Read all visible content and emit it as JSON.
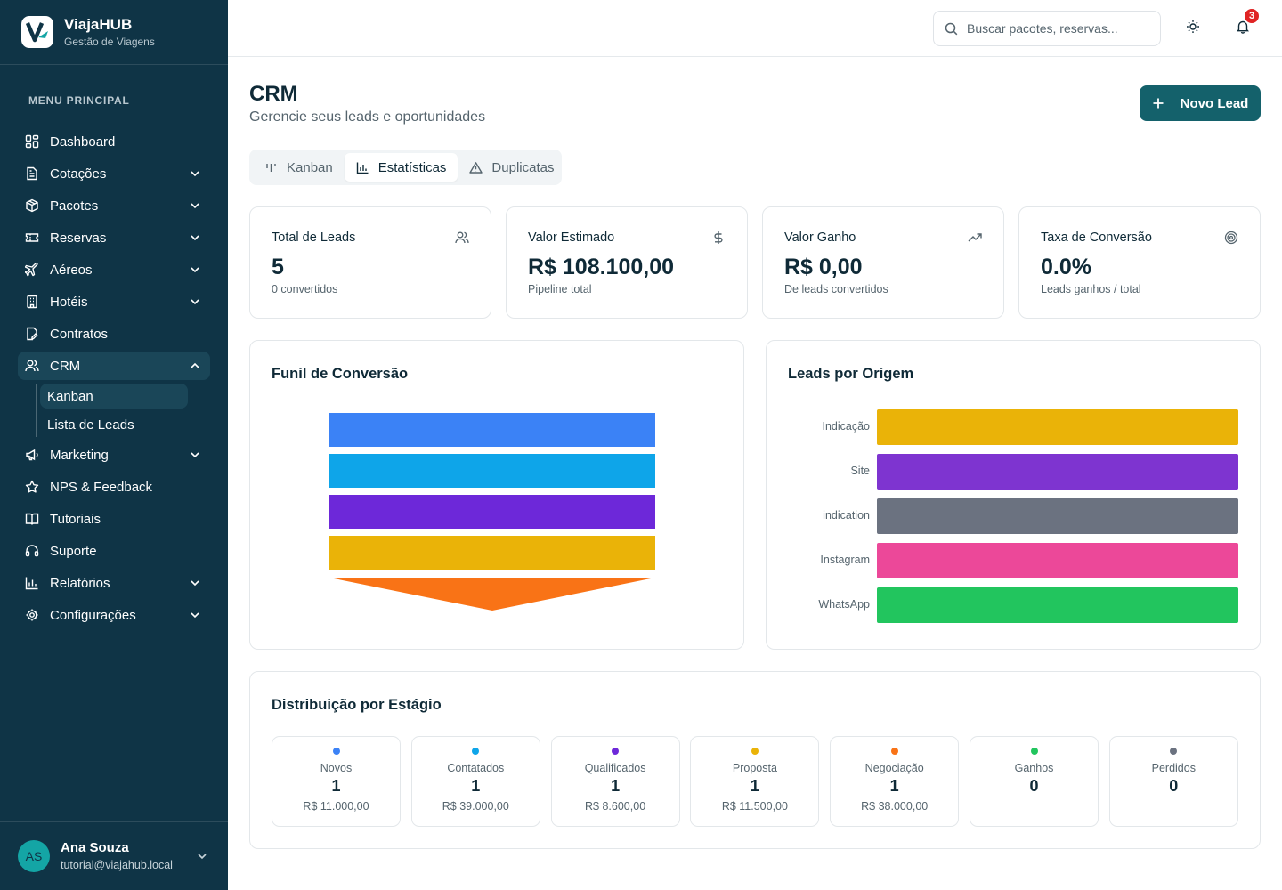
{
  "brand": {
    "name": "ViajaHUB",
    "subtitle": "Gestão de Viagens",
    "logo_letter": "V"
  },
  "sidebar": {
    "section_title": "MENU PRINCIPAL",
    "items": [
      {
        "label": "Dashboard",
        "icon": "grid-icon",
        "expandable": false
      },
      {
        "label": "Cotações",
        "icon": "document-icon",
        "expandable": true
      },
      {
        "label": "Pacotes",
        "icon": "package-icon",
        "expandable": true
      },
      {
        "label": "Reservas",
        "icon": "ticket-icon",
        "expandable": true
      },
      {
        "label": "Aéreos",
        "icon": "plane-icon",
        "expandable": true
      },
      {
        "label": "Hotéis",
        "icon": "hotel-icon",
        "expandable": true
      },
      {
        "label": "Contratos",
        "icon": "contract-icon",
        "expandable": false
      },
      {
        "label": "CRM",
        "icon": "users-icon",
        "expandable": true,
        "expanded": true,
        "active": true
      },
      {
        "label": "Marketing",
        "icon": "megaphone-icon",
        "expandable": true
      },
      {
        "label": "NPS & Feedback",
        "icon": "star-icon",
        "expandable": false
      },
      {
        "label": "Tutoriais",
        "icon": "book-icon",
        "expandable": false
      },
      {
        "label": "Suporte",
        "icon": "headset-icon",
        "expandable": false
      },
      {
        "label": "Relatórios",
        "icon": "chart-icon",
        "expandable": true
      },
      {
        "label": "Configurações",
        "icon": "gear-icon",
        "expandable": true
      }
    ],
    "crm_subitems": [
      {
        "label": "Kanban",
        "active": true
      },
      {
        "label": "Lista de Leads",
        "active": false
      }
    ]
  },
  "user": {
    "initials": "AS",
    "name": "Ana Souza",
    "email": "tutorial@viajahub.local"
  },
  "topbar": {
    "search_placeholder": "Buscar pacotes, reservas...",
    "notification_count": "3"
  },
  "page": {
    "title": "CRM",
    "subtitle": "Gerencie seus leads e oportunidades",
    "new_button": "Novo Lead"
  },
  "tabs": [
    {
      "label": "Kanban",
      "icon": "kanban-icon",
      "active": false
    },
    {
      "label": "Estatísticas",
      "icon": "bar-chart-icon",
      "active": true
    },
    {
      "label": "Duplicatas",
      "icon": "warning-icon",
      "active": false
    }
  ],
  "stats": [
    {
      "label": "Total de Leads",
      "value": "5",
      "note": "0 convertidos",
      "icon": "users-icon"
    },
    {
      "label": "Valor Estimado",
      "value": "R$ 108.100,00",
      "note": "Pipeline total",
      "icon": "dollar-icon"
    },
    {
      "label": "Valor Ganho",
      "value": "R$ 0,00",
      "note": "De leads convertidos",
      "icon": "trending-up-icon"
    },
    {
      "label": "Taxa de Conversão",
      "value": "0.0%",
      "note": "Leads ganhos / total",
      "icon": "target-icon"
    }
  ],
  "funnel": {
    "title": "Funil de Conversão",
    "stages": [
      {
        "color": "#3b82f6",
        "value": 1
      },
      {
        "color": "#0ea5e9",
        "value": 1
      },
      {
        "color": "#6d28d9",
        "value": 1
      },
      {
        "color": "#eab308",
        "value": 1
      },
      {
        "color": "#f97316",
        "value": 1
      }
    ]
  },
  "chart_data": {
    "type": "bar",
    "orientation": "horizontal",
    "title": "Leads por Origem",
    "categories": [
      "Indicação",
      "Site",
      "indication",
      "Instagram",
      "WhatsApp"
    ],
    "values": [
      1,
      1,
      1,
      1,
      1
    ],
    "colors": [
      "#eab308",
      "#7e34d0",
      "#6b7280",
      "#ec4899",
      "#22c55e"
    ],
    "grid": false,
    "legend": "none"
  },
  "distribution": {
    "title": "Distribuição por Estágio",
    "stages": [
      {
        "name": "Novos",
        "count": "1",
        "value": "R$ 11.000,00",
        "color": "#3b82f6"
      },
      {
        "name": "Contatados",
        "count": "1",
        "value": "R$ 39.000,00",
        "color": "#0ea5e9"
      },
      {
        "name": "Qualificados",
        "count": "1",
        "value": "R$ 8.600,00",
        "color": "#6d28d9"
      },
      {
        "name": "Proposta",
        "count": "1",
        "value": "R$ 11.500,00",
        "color": "#eab308"
      },
      {
        "name": "Negociação",
        "count": "1",
        "value": "R$ 38.000,00",
        "color": "#f97316"
      },
      {
        "name": "Ganhos",
        "count": "0",
        "value": "",
        "color": "#22c55e"
      },
      {
        "name": "Perdidos",
        "count": "0",
        "value": "",
        "color": "#6b7280"
      }
    ]
  }
}
